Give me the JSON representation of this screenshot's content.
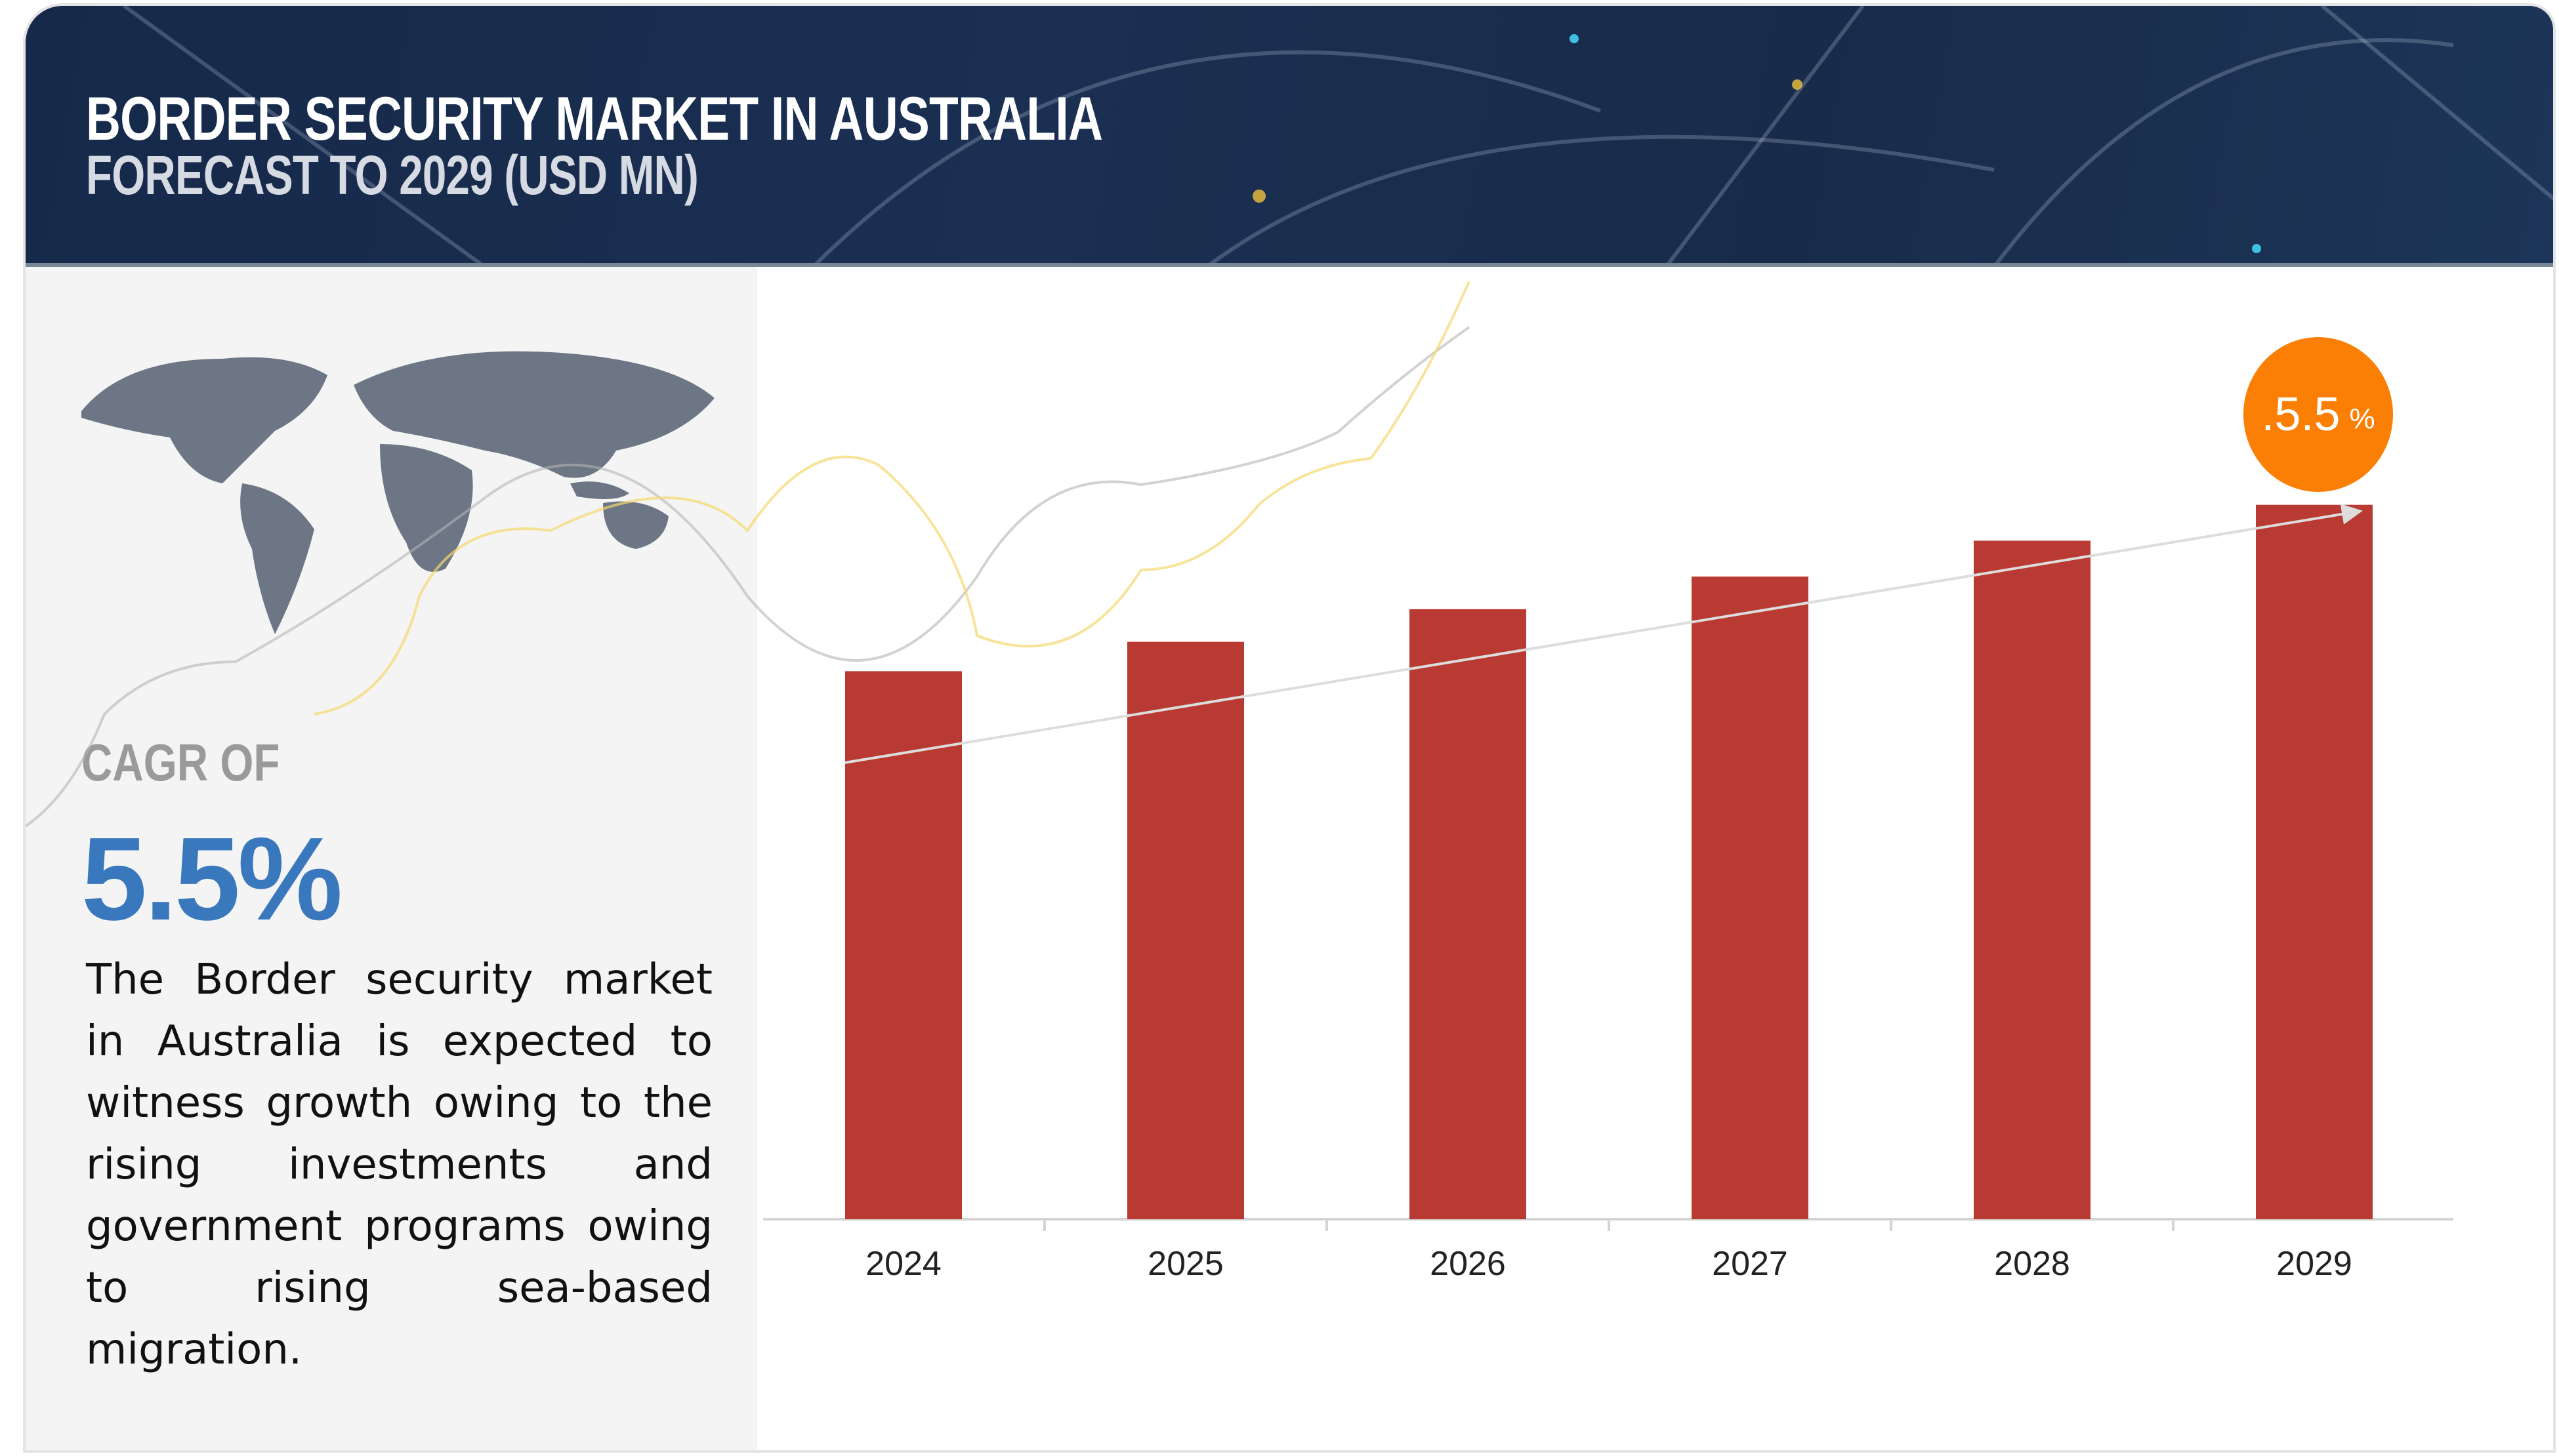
{
  "header": {
    "title": "BORDER SECURITY MARKET IN AUSTRALIA",
    "subtitle": "FORECAST TO 2029 (USD MN)"
  },
  "left_panel": {
    "cagr_label": "CAGR OF",
    "cagr_value": "5.5%",
    "description": "The Border security market in Australia is expected to witness growth owing to the rising investments and government programs owing to rising sea-based migration."
  },
  "badge": {
    "value": ".5.5",
    "unit": "%"
  },
  "colors": {
    "bar": "#b93a32",
    "badge": "#fb7f04",
    "cagr": "#3a78be",
    "header": "#172a4b"
  },
  "chart_data": {
    "type": "bar",
    "title": "BORDER SECURITY MARKET IN AUSTRALIA",
    "subtitle": "FORECAST TO 2029 (USD MN)",
    "categories": [
      "2024",
      "2025",
      "2026",
      "2027",
      "2028",
      "2029"
    ],
    "values": [
      336,
      354,
      374,
      394,
      416,
      438
    ],
    "value_units": "relative (no y-axis shown)",
    "ylim": [
      0,
      450
    ],
    "xlabel": "",
    "ylabel": "",
    "grid": false,
    "annotations": [
      "trend arrow from 2024 to 2029",
      "CAGR badge .5.5 %"
    ]
  }
}
